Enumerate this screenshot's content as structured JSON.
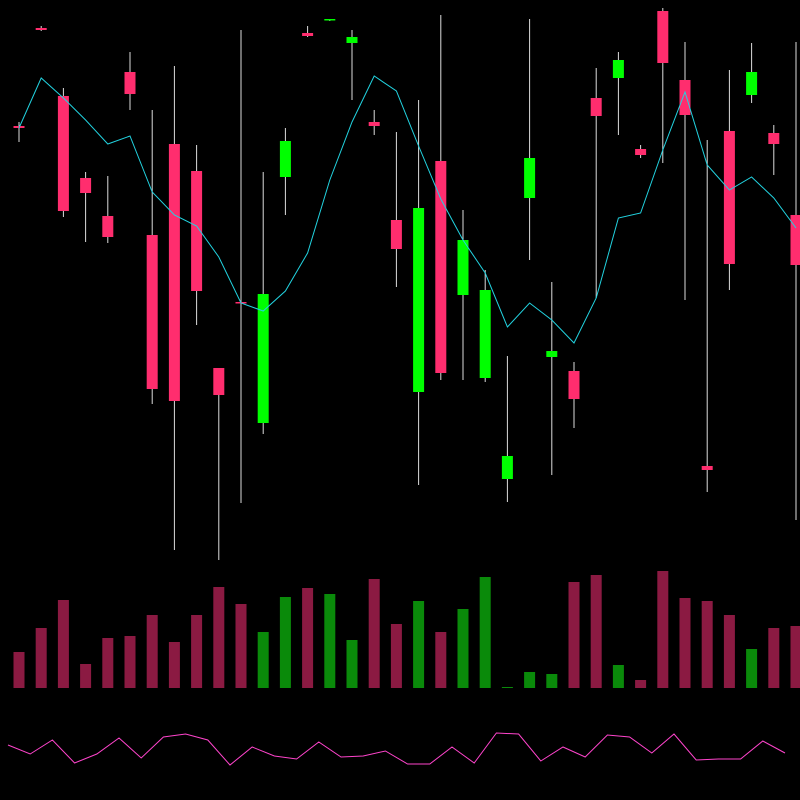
{
  "chart_data": {
    "type": "candlestick",
    "ylim": [
      0,
      800
    ],
    "up_color": "#00ff00",
    "down_color": "#ff2d6e",
    "wick_color": "#dddddd",
    "open": [
      674,
      772,
      704,
      622,
      584,
      728,
      565,
      656,
      629,
      432,
      498,
      377,
      623,
      767,
      780,
      757,
      678,
      580,
      408,
      639,
      505,
      422,
      321,
      602,
      443,
      429,
      702,
      722,
      651,
      789,
      720,
      334,
      669,
      705,
      667,
      585
    ],
    "high": [
      678,
      774,
      712,
      628,
      624,
      748,
      690,
      734,
      655,
      432,
      770,
      628,
      672,
      774,
      781,
      770,
      690,
      668,
      700,
      785,
      590,
      530,
      444,
      781,
      518,
      438,
      732,
      748,
      655,
      792,
      758,
      660,
      730,
      757,
      675,
      758
    ],
    "low": [
      658,
      769,
      583,
      558,
      557,
      690,
      396,
      250,
      475,
      240,
      297,
      366,
      585,
      763,
      779,
      700,
      665,
      513,
      315,
      420,
      420,
      418,
      298,
      540,
      325,
      372,
      502,
      665,
      642,
      637,
      500,
      308,
      510,
      697,
      625,
      280
    ],
    "close": [
      672,
      770,
      589,
      607,
      563,
      706,
      411,
      399,
      509,
      405,
      497,
      506,
      659,
      764,
      781,
      763,
      674,
      551,
      592,
      427,
      560,
      510,
      344,
      642,
      449,
      401,
      684,
      740,
      645,
      737,
      685,
      330,
      536,
      728,
      656,
      535
    ],
    "moving_average": {
      "color": "#22d3e0",
      "values": [
        672,
        722,
        702,
        680,
        656,
        664,
        608,
        585,
        574,
        543,
        497,
        489,
        509,
        547,
        620,
        678,
        724,
        709,
        654,
        601,
        560,
        527,
        473,
        497,
        480,
        457,
        502,
        582,
        587,
        650,
        708,
        635,
        610,
        623,
        602,
        572
      ]
    },
    "volume": {
      "ylim": [
        0,
        128
      ],
      "up_color": "#0a8a0a",
      "down_color": "#8b1a42",
      "values": [
        36,
        60,
        88,
        24,
        50,
        52,
        73,
        46,
        73,
        101,
        84,
        56,
        91,
        100,
        94,
        48,
        109,
        64,
        87,
        56,
        79,
        111,
        1,
        16,
        14,
        106,
        113,
        23,
        8,
        117,
        90,
        87,
        73,
        39,
        60,
        62
      ]
    },
    "oscillator": {
      "ylim": [
        0,
        100
      ],
      "color": "#ff44cc",
      "values": [
        55,
        46,
        60,
        37,
        46,
        62,
        42,
        63,
        66,
        60,
        35,
        53,
        44,
        41,
        58,
        43,
        44,
        49,
        36,
        36,
        53,
        37,
        67,
        66,
        39,
        53,
        43,
        65,
        63,
        47,
        66,
        40,
        41,
        41,
        59,
        47
      ]
    }
  }
}
